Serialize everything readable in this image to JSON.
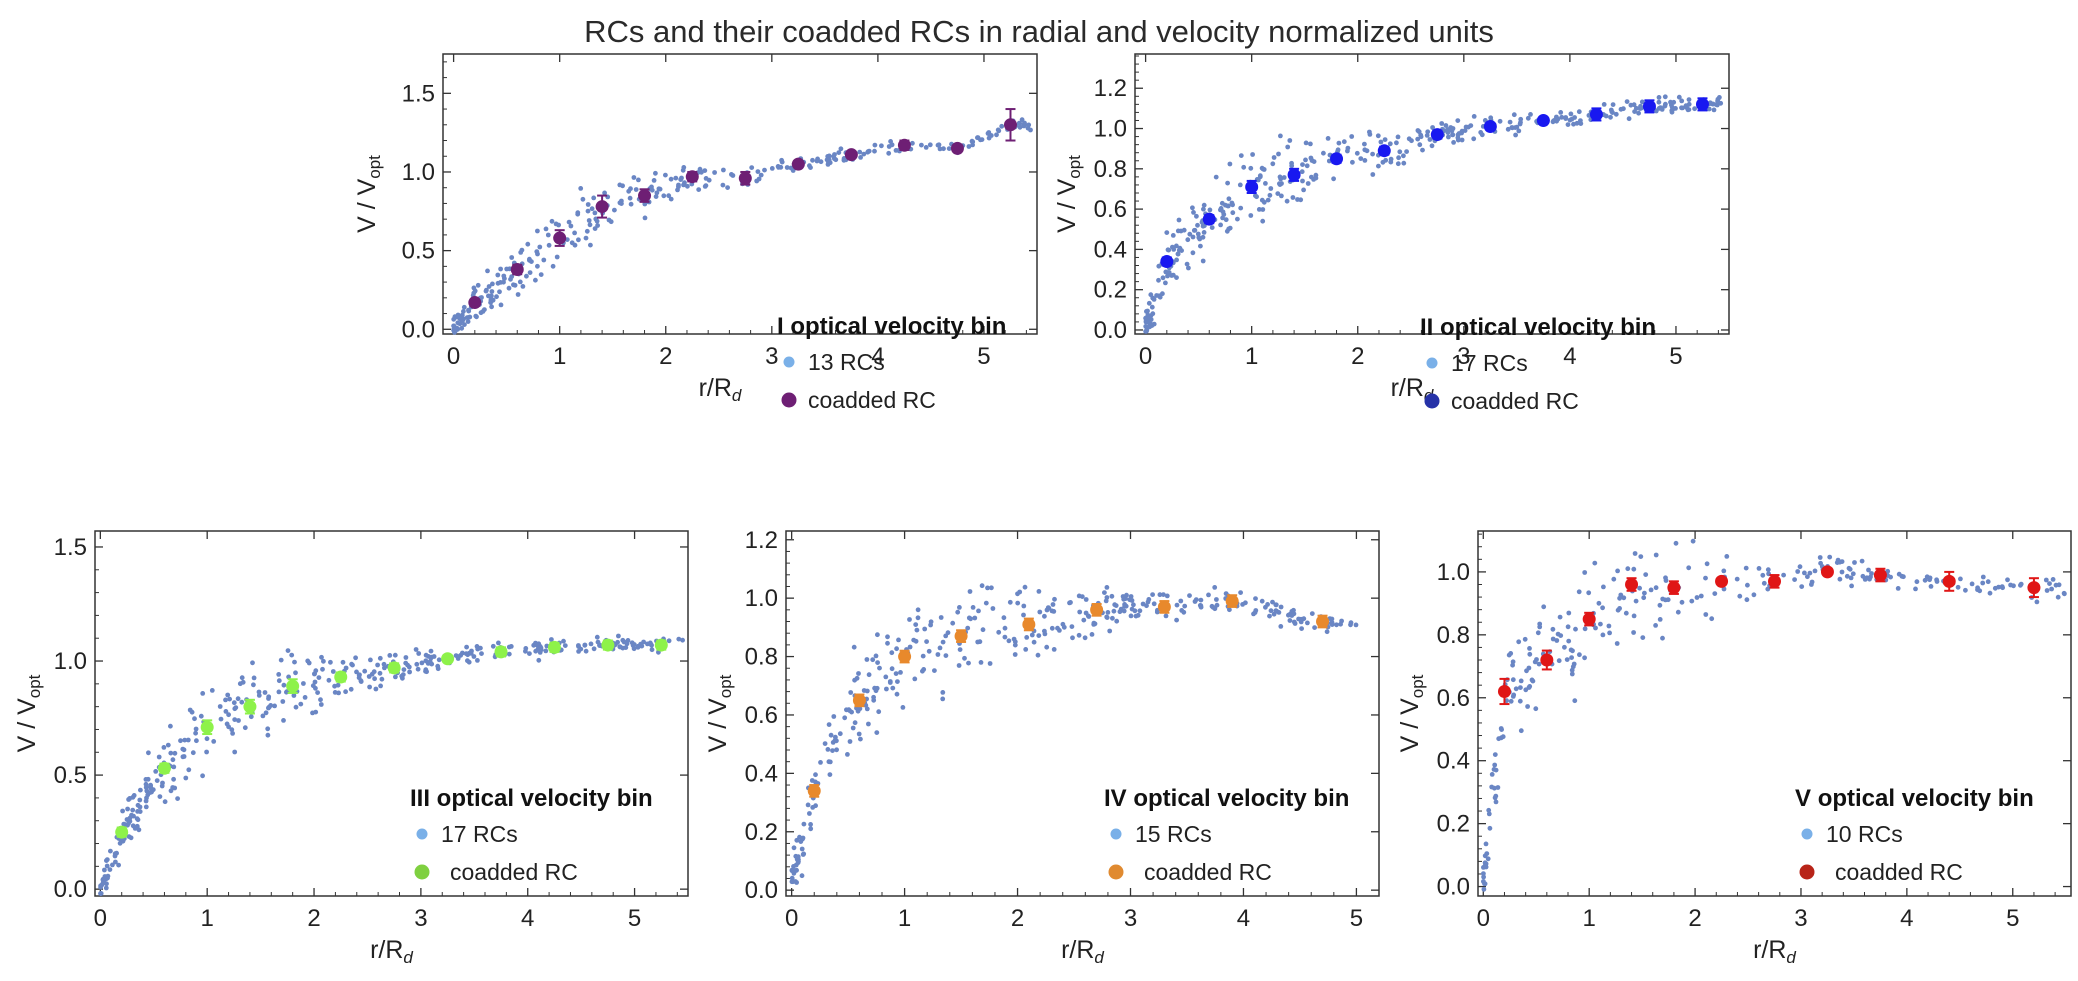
{
  "figure_title": "RCs and their coadded RCs in radial and velocity normalized units",
  "colors": {
    "rc_points": "#6a86c4",
    "rc_legend": "#7ab0e8",
    "bin_I": "#6e1f74",
    "bin_II": "#1818f0",
    "bin_III": "#8ef24a",
    "bin_IV": "#e8892c",
    "bin_V": "#e01616"
  },
  "chart_data": [
    {
      "type": "scatter",
      "panel": "I",
      "xlabel": "r/R_d",
      "ylabel": "V / V_opt",
      "xlim": [
        -0.1,
        5.5
      ],
      "ylim": [
        -0.03,
        1.75
      ],
      "xticks": [
        "0",
        "1",
        "2",
        "3",
        "4",
        "5"
      ],
      "yticks": [
        "0.0",
        "0.5",
        "1.0",
        "1.5"
      ],
      "legend": {
        "bin_label": "I",
        "title": "optical velocity bin",
        "rc_label": "13 RCs",
        "coadd_label": "coadded RC",
        "coadd_legend_color": "#6e1f74"
      },
      "rc_count": 13,
      "coadded": {
        "x": [
          0.2,
          0.6,
          1.0,
          1.4,
          1.8,
          2.25,
          2.75,
          3.25,
          3.75,
          4.25,
          4.75,
          5.25
        ],
        "y": [
          0.17,
          0.38,
          0.58,
          0.78,
          0.85,
          0.97,
          0.96,
          1.05,
          1.11,
          1.17,
          1.15,
          1.3
        ],
        "err": [
          0.02,
          0.03,
          0.05,
          0.07,
          0.04,
          0.03,
          0.04,
          0.02,
          0.02,
          0.03,
          0.02,
          0.1
        ]
      }
    },
    {
      "type": "scatter",
      "panel": "II",
      "xlabel": "r/R_d",
      "ylabel": "V / V_opt",
      "xlim": [
        -0.1,
        5.5
      ],
      "ylim": [
        -0.02,
        1.37
      ],
      "xticks": [
        "0",
        "1",
        "2",
        "3",
        "4",
        "5"
      ],
      "yticks": [
        "0.0",
        "0.2",
        "0.4",
        "0.6",
        "0.8",
        "1.0",
        "1.2"
      ],
      "legend": {
        "bin_label": "II",
        "title": "optical velocity bin",
        "rc_label": "17 RCs",
        "coadd_label": "coadded RC",
        "coadd_legend_color": "#2632a8"
      },
      "rc_count": 17,
      "coadded": {
        "x": [
          0.2,
          0.6,
          1.0,
          1.4,
          1.8,
          2.25,
          2.75,
          3.25,
          3.75,
          4.25,
          4.75,
          5.25
        ],
        "y": [
          0.34,
          0.55,
          0.71,
          0.77,
          0.85,
          0.89,
          0.97,
          1.01,
          1.04,
          1.07,
          1.11,
          1.12
        ],
        "err": [
          0.02,
          0.02,
          0.03,
          0.03,
          0.02,
          0.02,
          0.02,
          0.01,
          0.01,
          0.03,
          0.03,
          0.03
        ]
      }
    },
    {
      "type": "scatter",
      "panel": "III",
      "xlabel": "r/R_d",
      "ylabel": "V / V_opt",
      "xlim": [
        -0.05,
        5.5
      ],
      "ylim": [
        -0.03,
        1.57
      ],
      "xticks": [
        "0",
        "1",
        "2",
        "3",
        "4",
        "5"
      ],
      "yticks": [
        "0.0",
        "0.5",
        "1.0",
        "1.5"
      ],
      "legend": {
        "bin_label": "III",
        "title": "optical velocity bin",
        "rc_label": "17 RCs",
        "coadd_label": "coadded RC",
        "coadd_legend_color": "#7fd040"
      },
      "rc_count": 17,
      "coadded": {
        "x": [
          0.2,
          0.6,
          1.0,
          1.4,
          1.8,
          2.25,
          2.75,
          3.25,
          3.75,
          4.25,
          4.75,
          5.25
        ],
        "y": [
          0.25,
          0.53,
          0.71,
          0.8,
          0.89,
          0.93,
          0.97,
          1.01,
          1.04,
          1.06,
          1.07,
          1.07
        ],
        "err": [
          0.02,
          0.02,
          0.03,
          0.03,
          0.03,
          0.02,
          0.02,
          0.01,
          0.02,
          0.02,
          0.02,
          0.02
        ]
      }
    },
    {
      "type": "scatter",
      "panel": "IV",
      "xlabel": "r/R_d",
      "ylabel": "V / V_opt",
      "xlim": [
        -0.05,
        5.2
      ],
      "ylim": [
        -0.02,
        1.23
      ],
      "xticks": [
        "0",
        "1",
        "2",
        "3",
        "4",
        "5"
      ],
      "yticks": [
        "0.0",
        "0.2",
        "0.4",
        "0.6",
        "0.8",
        "1.0",
        "1.2"
      ],
      "legend": {
        "bin_label": "IV",
        "title": "optical velocity bin",
        "rc_label": "15 RCs",
        "coadd_label": "coadded RC",
        "coadd_legend_color": "#e08a30"
      },
      "rc_count": 15,
      "coadded": {
        "x": [
          0.2,
          0.6,
          1.0,
          1.5,
          2.1,
          2.7,
          3.3,
          3.9,
          4.7
        ],
        "y": [
          0.34,
          0.65,
          0.8,
          0.87,
          0.91,
          0.96,
          0.97,
          0.99,
          0.92
        ],
        "err": [
          0.02,
          0.02,
          0.02,
          0.02,
          0.02,
          0.02,
          0.02,
          0.02,
          0.02
        ]
      }
    },
    {
      "type": "scatter",
      "panel": "V",
      "xlabel": "r/R_d",
      "ylabel": "V / V_opt",
      "xlim": [
        -0.05,
        5.55
      ],
      "ylim": [
        -0.03,
        1.13
      ],
      "xticks": [
        "0",
        "1",
        "2",
        "3",
        "4",
        "5"
      ],
      "yticks": [
        "0.0",
        "0.2",
        "0.4",
        "0.6",
        "0.8",
        "1.0"
      ],
      "legend": {
        "bin_label": "V",
        "title": "optical velocity bin",
        "rc_label": "10 RCs",
        "coadd_label": "coadded RC",
        "coadd_legend_color": "#b82418"
      },
      "rc_count": 10,
      "coadded": {
        "x": [
          0.2,
          0.6,
          1.0,
          1.4,
          1.8,
          2.25,
          2.75,
          3.25,
          3.75,
          4.4,
          5.2
        ],
        "y": [
          0.62,
          0.72,
          0.85,
          0.96,
          0.95,
          0.97,
          0.97,
          1.0,
          0.99,
          0.97,
          0.95
        ],
        "err": [
          0.04,
          0.03,
          0.02,
          0.02,
          0.02,
          0.01,
          0.02,
          0.01,
          0.02,
          0.03,
          0.03
        ]
      }
    }
  ]
}
